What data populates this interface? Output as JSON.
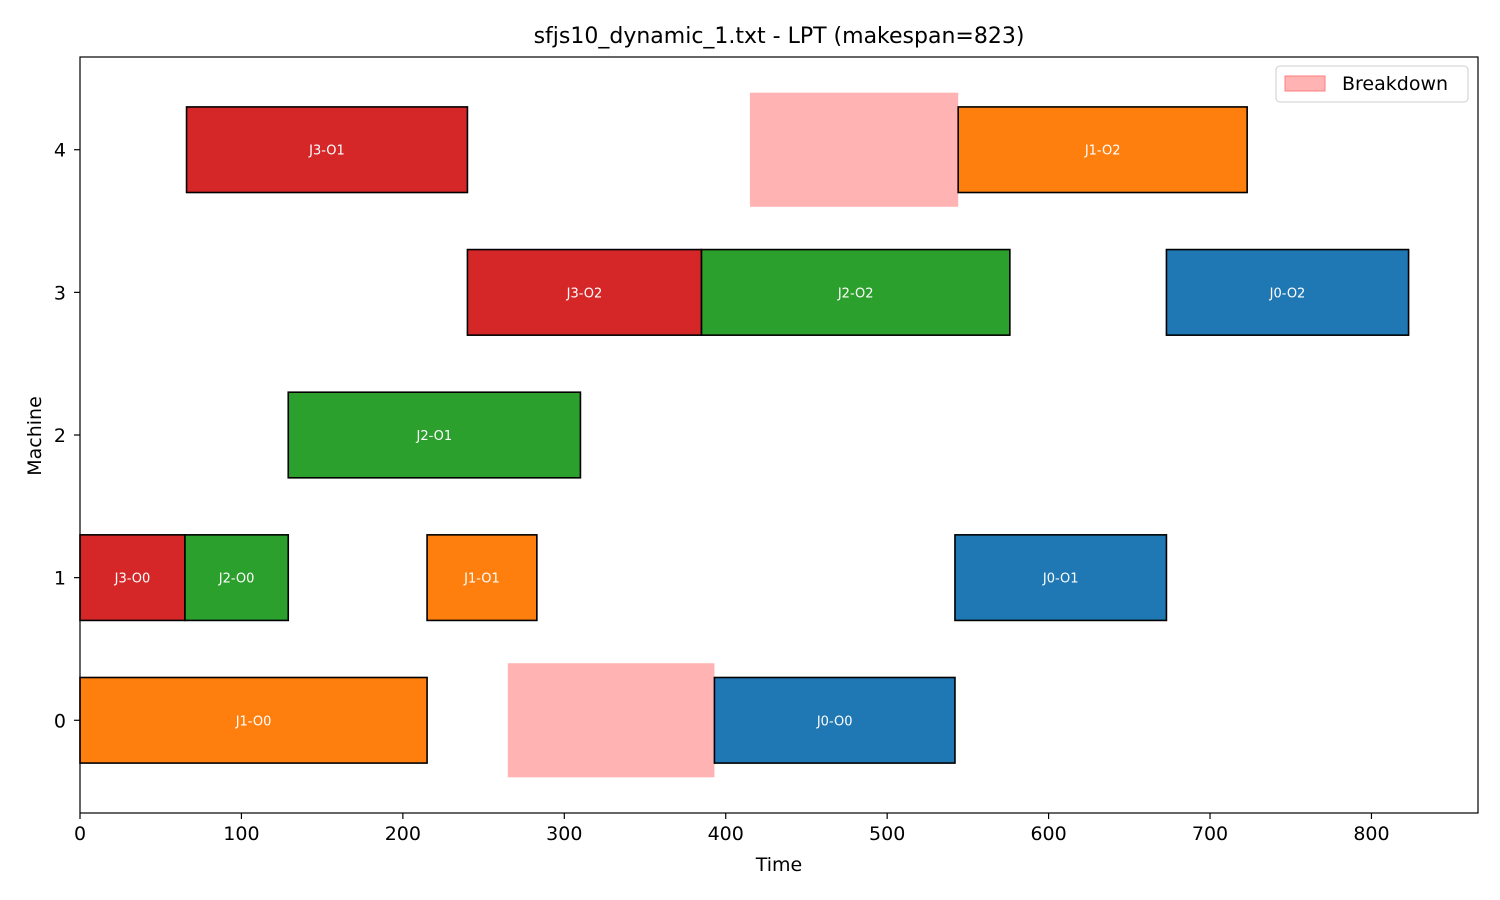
{
  "chart_data": {
    "type": "gantt",
    "title": "sfjs10_dynamic_1.txt - LPT (makespan=823)",
    "xlabel": "Time",
    "ylabel": "Machine",
    "xlim": [
      0,
      866
    ],
    "ylim": [
      -0.65,
      4.65
    ],
    "x_ticks": [
      0,
      100,
      200,
      300,
      400,
      500,
      600,
      700,
      800
    ],
    "y_ticks": [
      0,
      1,
      2,
      3,
      4
    ],
    "grid": false,
    "legend": {
      "position": "top-right",
      "entries": [
        {
          "label": "Breakdown",
          "color": "#ffb3b3"
        }
      ]
    },
    "job_colors": {
      "J0": "#1f77b4",
      "J1": "#ff7f0e",
      "J2": "#2ca02c",
      "J3": "#d62728"
    },
    "operations": [
      {
        "label": "J1-O0",
        "job": "J1",
        "machine": 0,
        "start": 0,
        "end": 215
      },
      {
        "label": "J0-O0",
        "job": "J0",
        "machine": 0,
        "start": 393,
        "end": 542
      },
      {
        "label": "J3-O0",
        "job": "J3",
        "machine": 1,
        "start": 0,
        "end": 65
      },
      {
        "label": "J2-O0",
        "job": "J2",
        "machine": 1,
        "start": 65,
        "end": 129
      },
      {
        "label": "J1-O1",
        "job": "J1",
        "machine": 1,
        "start": 215,
        "end": 283
      },
      {
        "label": "J0-O1",
        "job": "J0",
        "machine": 1,
        "start": 542,
        "end": 673
      },
      {
        "label": "J2-O1",
        "job": "J2",
        "machine": 2,
        "start": 129,
        "end": 310
      },
      {
        "label": "J3-O2",
        "job": "J3",
        "machine": 3,
        "start": 240,
        "end": 385
      },
      {
        "label": "J2-O2",
        "job": "J2",
        "machine": 3,
        "start": 385,
        "end": 576
      },
      {
        "label": "J0-O2",
        "job": "J0",
        "machine": 3,
        "start": 673,
        "end": 823
      },
      {
        "label": "J3-O1",
        "job": "J3",
        "machine": 4,
        "start": 66,
        "end": 240
      },
      {
        "label": "J1-O2",
        "job": "J1",
        "machine": 4,
        "start": 544,
        "end": 723
      }
    ],
    "breakdowns": [
      {
        "machine": 0,
        "start": 265,
        "end": 393
      },
      {
        "machine": 4,
        "start": 415,
        "end": 544
      }
    ]
  }
}
